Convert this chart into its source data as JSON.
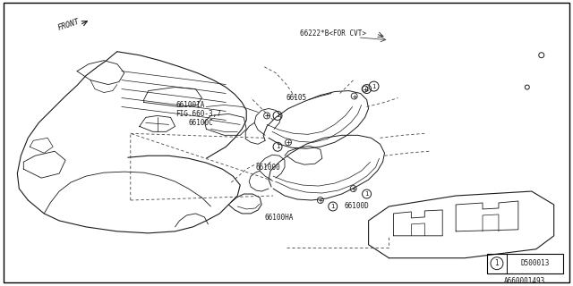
{
  "background_color": "#ffffff",
  "fig_width": 6.4,
  "fig_height": 3.2,
  "dpi": 100,
  "line_color": "#1a1a1a",
  "text_color": "#1a1a1a",
  "labels": {
    "front": "FRONT",
    "p66222": "66222*B<FOR CVT>",
    "p66105": "66105",
    "p66100IA": "66100IA",
    "pfig": "FIG.660-3,7",
    "p66100C": "66100C",
    "p661000": "661000",
    "p66100HA": "66100HA",
    "p66100D": "66100D",
    "pnum": "D500013",
    "pref": "A660001493"
  }
}
